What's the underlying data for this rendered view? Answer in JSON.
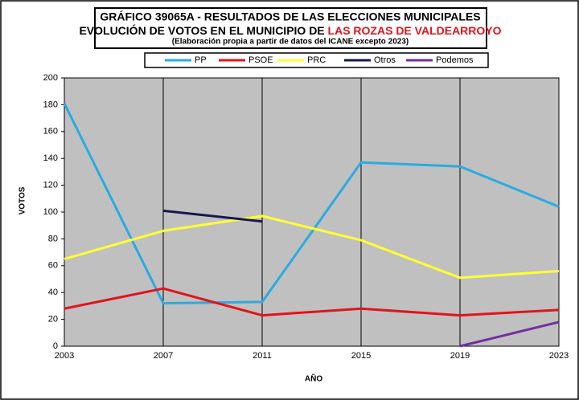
{
  "chart_data": {
    "type": "line",
    "title": "GRÁFICO 39065A - RESULTADOS DE LAS ELECCIONES MUNICIPALES",
    "title_line2": "EVOLUCIÓN DE VOTOS EN EL MUNICIPIO DE",
    "title_highlight": "LAS ROZAS DE VALDEARROYO",
    "subtitle": "(Elaboración propia a partir de datos del ICANE excepto 2023)",
    "x_label": "AÑO",
    "y_label": "VOTOS",
    "categories": [
      "2003",
      "2007",
      "2011",
      "2015",
      "2019",
      "2023"
    ],
    "series": [
      {
        "name": "PP",
        "color": "#29abe2",
        "values": [
          181,
          32,
          33,
          137,
          134,
          104
        ]
      },
      {
        "name": "PSOE",
        "color": "#e0141b",
        "values": [
          28,
          43,
          23,
          28,
          23,
          27
        ]
      },
      {
        "name": "PRC",
        "color": "#ffff33",
        "values": [
          65,
          86,
          97,
          79,
          51,
          56
        ]
      },
      {
        "name": "Otros",
        "color": "#15184f",
        "values": [
          null,
          101,
          93,
          null,
          null,
          null
        ]
      },
      {
        "name": "Podemos",
        "color": "#7030a0",
        "values": [
          null,
          null,
          null,
          null,
          0,
          18
        ]
      }
    ],
    "ylim": [
      0,
      200
    ],
    "yticks": [
      0,
      20,
      40,
      60,
      80,
      100,
      120,
      140,
      160,
      180,
      200
    ],
    "grid": "x"
  }
}
